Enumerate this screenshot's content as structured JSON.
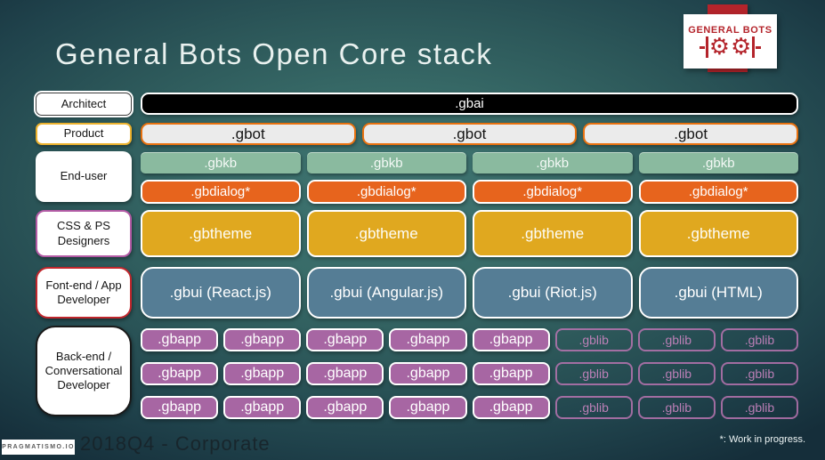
{
  "slide": {
    "title": "General Bots Open Core stack",
    "footer": {
      "brand_small": "PRAGMATISMO.IO",
      "edition": "2018Q4 - Corporate",
      "note": "*: Work in progress."
    }
  },
  "logo": {
    "brand": "GENERAL BOTS"
  },
  "icons": {
    "gear": "⚙"
  },
  "roles": {
    "architect": "Architect",
    "product": "Product",
    "end_user": "End-user",
    "designers_lines": [
      "CSS & PS",
      "Designers"
    ],
    "frontend_lines": [
      "Font-end / App",
      "Developer"
    ],
    "backend_lines": [
      "Back-end /",
      "Conversational",
      "Developer"
    ]
  },
  "stack": {
    "gbai": ".gbai",
    "gbot": [
      ".gbot",
      ".gbot",
      ".gbot"
    ],
    "gbkb": [
      ".gbkb",
      ".gbkb",
      ".gbkb",
      ".gbkb"
    ],
    "gbdialog": [
      ".gbdialog*",
      ".gbdialog*",
      ".gbdialog*",
      ".gbdialog*"
    ],
    "gbtheme": [
      ".gbtheme",
      ".gbtheme",
      ".gbtheme",
      ".gbtheme"
    ],
    "gbui": [
      ".gbui (React.js)",
      ".gbui (Angular.js)",
      ".gbui (Riot.js)",
      ".gbui (HTML)"
    ],
    "backend_rows": [
      [
        ".gbapp",
        ".gbapp",
        ".gbapp",
        ".gbapp",
        ".gbapp",
        ".gblib",
        ".gblib",
        ".gblib"
      ],
      [
        ".gbapp",
        ".gbapp",
        ".gbapp",
        ".gbapp",
        ".gbapp",
        ".gblib",
        ".gblib",
        ".gblib"
      ],
      [
        ".gbapp",
        ".gbapp",
        ".gbapp",
        ".gbapp",
        ".gbapp",
        ".gblib",
        ".gblib",
        ".gblib"
      ]
    ]
  },
  "colors": {
    "logo_red": "#b4242b",
    "gbai_bg": "#000000",
    "gbot_bg": "#ebebeb",
    "gbot_border": "#e8710f",
    "gbkb_bg": "#8aba9f",
    "gbdialog_bg": "#e7641d",
    "gbtheme_bg": "#e0a81f",
    "gbui_bg": "#557d95",
    "gbapp_bg": "#a766a3",
    "gblib_border": "#b973b0",
    "product_border": "#ecb22e",
    "designers_border": "#b35ba5",
    "frontend_border": "#c1272d",
    "backend_border": "#1a1a1a"
  }
}
